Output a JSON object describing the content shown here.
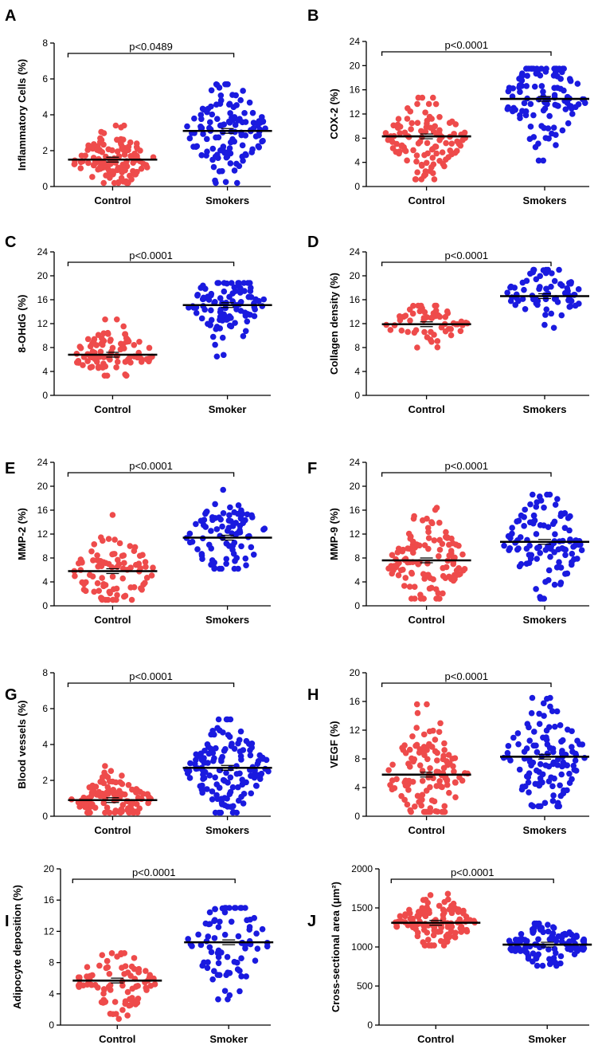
{
  "colors": {
    "control": "#ee4b4b",
    "smokers": "#1a1adf",
    "axis": "#000000"
  },
  "chart_data": [
    {
      "type": "scatter",
      "panel": "A",
      "ylabel": "Inflammatory Cells (%)",
      "ylim": [
        0,
        8
      ],
      "yticks": [
        0,
        2,
        4,
        6,
        8
      ],
      "categories": [
        "Control",
        "Smokers"
      ],
      "pvalue": "p<0.0489",
      "series": [
        {
          "category": "Control",
          "mean": 1.5,
          "min": 0.2,
          "max": 3.4,
          "n": 130
        },
        {
          "category": "Smokers",
          "mean": 3.1,
          "min": 0.2,
          "max": 5.7,
          "n": 130
        }
      ]
    },
    {
      "type": "scatter",
      "panel": "B",
      "ylabel": "COX-2 (%)",
      "ylim": [
        0,
        24
      ],
      "yticks": [
        0,
        4,
        8,
        12,
        16,
        20,
        24
      ],
      "categories": [
        "Control",
        "Smokers"
      ],
      "pvalue": "p<0.0001",
      "series": [
        {
          "category": "Control",
          "mean": 8.3,
          "min": 1.2,
          "max": 14.7,
          "n": 110
        },
        {
          "category": "Smokers",
          "mean": 14.5,
          "min": 4.3,
          "max": 19.5,
          "n": 110
        }
      ]
    },
    {
      "type": "scatter",
      "panel": "C",
      "ylabel": "8-OHdG (%)",
      "ylim": [
        0,
        24
      ],
      "yticks": [
        0,
        4,
        8,
        12,
        16,
        20,
        24
      ],
      "categories": [
        "Control",
        "Smoker"
      ],
      "pvalue": "p<0.0001",
      "series": [
        {
          "category": "Control",
          "mean": 6.8,
          "min": 3.3,
          "max": 12.7,
          "n": 90
        },
        {
          "category": "Smoker",
          "mean": 15.1,
          "min": 6.5,
          "max": 18.8,
          "n": 100
        }
      ]
    },
    {
      "type": "scatter",
      "panel": "D",
      "ylabel": "Collagen density (%)",
      "ylim": [
        0,
        24
      ],
      "yticks": [
        0,
        4,
        8,
        12,
        16,
        20,
        24
      ],
      "categories": [
        "Control",
        "Smokers"
      ],
      "pvalue": "p<0.0001",
      "series": [
        {
          "category": "Control",
          "mean": 11.9,
          "min": 8.0,
          "max": 15.0,
          "n": 60
        },
        {
          "category": "Smokers",
          "mean": 16.6,
          "min": 11.3,
          "max": 21.0,
          "n": 70
        }
      ]
    },
    {
      "type": "scatter",
      "panel": "E",
      "ylabel": "MMP-2 (%)",
      "ylim": [
        0,
        24
      ],
      "yticks": [
        0,
        4,
        8,
        12,
        16,
        20,
        24
      ],
      "categories": [
        "Control",
        "Smokers"
      ],
      "pvalue": "p<0.0001",
      "series": [
        {
          "category": "Control",
          "mean": 5.8,
          "min": 1.0,
          "max": 15.2,
          "n": 90
        },
        {
          "category": "Smokers",
          "mean": 11.4,
          "min": 6.2,
          "max": 19.4,
          "n": 90
        }
      ]
    },
    {
      "type": "scatter",
      "panel": "F",
      "ylabel": "MMP-9 (%)",
      "ylim": [
        0,
        24
      ],
      "yticks": [
        0,
        4,
        8,
        12,
        16,
        20,
        24
      ],
      "categories": [
        "Control",
        "Smokers"
      ],
      "pvalue": "p<0.0001",
      "series": [
        {
          "category": "Control",
          "mean": 7.6,
          "min": 1.2,
          "max": 16.4,
          "n": 120
        },
        {
          "category": "Smokers",
          "mean": 10.7,
          "min": 1.2,
          "max": 18.6,
          "n": 110
        }
      ]
    },
    {
      "type": "scatter",
      "panel": "G",
      "ylabel": "Blood vessels (%)",
      "ylim": [
        0,
        8
      ],
      "yticks": [
        0,
        2,
        4,
        6,
        8
      ],
      "categories": [
        "Control",
        "Smokers"
      ],
      "pvalue": "p<0.0001",
      "series": [
        {
          "category": "Control",
          "mean": 0.9,
          "min": 0.2,
          "max": 2.8,
          "n": 110
        },
        {
          "category": "Smokers",
          "mean": 2.7,
          "min": 0.2,
          "max": 5.4,
          "n": 140
        }
      ]
    },
    {
      "type": "scatter",
      "panel": "H",
      "ylabel": "VEGF (%)",
      "ylim": [
        0,
        20
      ],
      "yticks": [
        0,
        4,
        8,
        12,
        16,
        20
      ],
      "categories": [
        "Control",
        "Smokers"
      ],
      "pvalue": "p<0.0001",
      "series": [
        {
          "category": "Control",
          "mean": 5.8,
          "min": 0.6,
          "max": 15.6,
          "n": 120
        },
        {
          "category": "Smokers",
          "mean": 8.3,
          "min": 1.4,
          "max": 16.5,
          "n": 120
        }
      ]
    },
    {
      "type": "scatter",
      "panel": "I",
      "ylabel": "Adipocyte deposition (%)",
      "ylim": [
        0,
        20
      ],
      "yticks": [
        0,
        4,
        8,
        12,
        16,
        20
      ],
      "categories": [
        "Control",
        "Smoker"
      ],
      "pvalue": "p<0.0001",
      "series": [
        {
          "category": "Control",
          "mean": 5.7,
          "min": 0.8,
          "max": 9.2,
          "n": 90
        },
        {
          "category": "Smoker",
          "mean": 10.6,
          "min": 3.3,
          "max": 15.0,
          "n": 80
        }
      ]
    },
    {
      "type": "scatter",
      "panel": "J",
      "ylabel": "Cross-sectional area (μm²)",
      "ylim": [
        0,
        2000
      ],
      "yticks": [
        0,
        500,
        1000,
        1500,
        2000
      ],
      "categories": [
        "Control",
        "Smoker"
      ],
      "pvalue": "p<0.0001",
      "series": [
        {
          "category": "Control",
          "mean": 1310,
          "min": 1020,
          "max": 1680,
          "n": 120
        },
        {
          "category": "Smoker",
          "mean": 1030,
          "min": 760,
          "max": 1300,
          "n": 110
        }
      ]
    }
  ]
}
